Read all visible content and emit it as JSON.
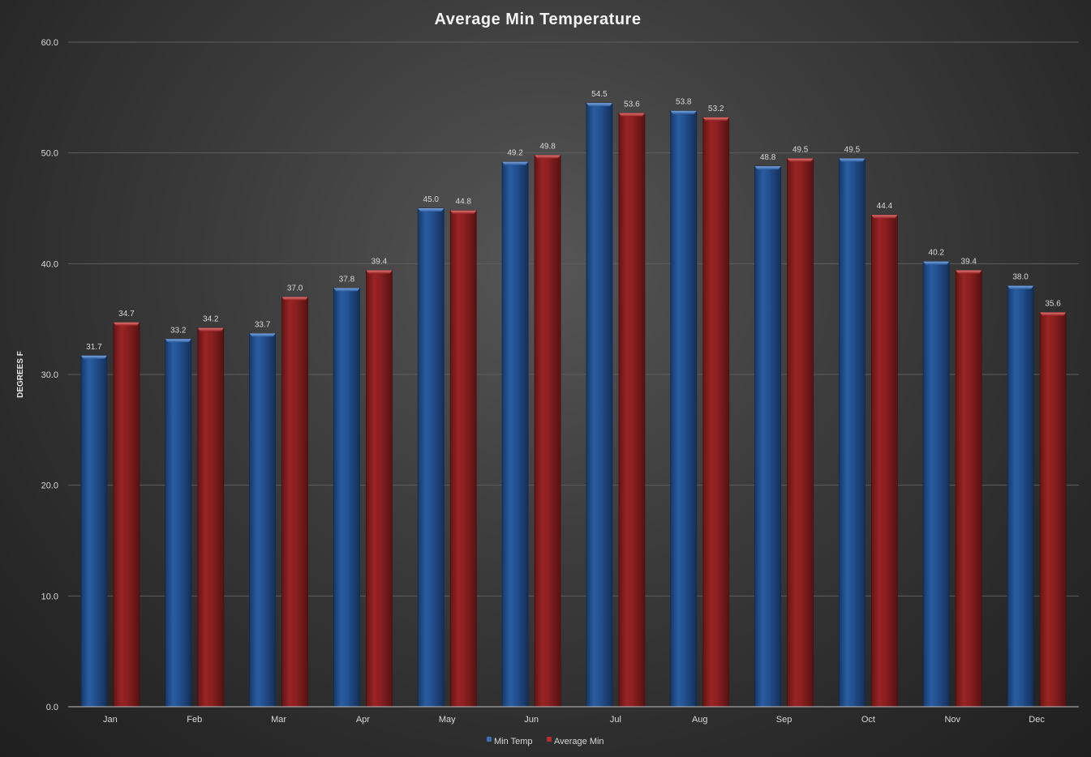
{
  "chart_data": {
    "type": "bar",
    "title": "Average Min Temperature",
    "xlabel": "",
    "ylabel": "DEGREES F",
    "categories": [
      "Jan",
      "Feb",
      "Mar",
      "Apr",
      "May",
      "Jun",
      "Jul",
      "Aug",
      "Sep",
      "Oct",
      "Nov",
      "Dec"
    ],
    "series": [
      {
        "name": "Min Temp",
        "color": "#1f4e8c",
        "values": [
          31.7,
          33.2,
          33.7,
          37.8,
          45.0,
          49.2,
          54.5,
          53.8,
          48.8,
          49.5,
          40.2,
          38.0
        ],
        "labels": [
          "31.7",
          "33.2",
          "33.7",
          "37.8",
          "45.0",
          "49.2",
          "54.5",
          "53.8",
          "48.8",
          "49.5",
          "40.2",
          "38.0"
        ]
      },
      {
        "name": "Average Min",
        "color": "#8b1e1e",
        "values": [
          34.7,
          34.2,
          37.0,
          39.4,
          44.8,
          49.8,
          53.6,
          53.2,
          49.5,
          44.4,
          39.4,
          35.6
        ],
        "labels": [
          "34.7",
          "34.2",
          "37.0",
          "39.4",
          "44.8",
          "49.8",
          "53.6",
          "53.2",
          "49.5",
          "44.4",
          "39.4",
          "35.6"
        ]
      }
    ],
    "ylim": [
      0,
      60
    ],
    "yticks": [
      0,
      10,
      20,
      30,
      40,
      50,
      60
    ],
    "ytick_labels": [
      "0.0",
      "10.0",
      "20.0",
      "30.0",
      "40.0",
      "50.0",
      "60.0"
    ],
    "grid": true,
    "legend_position": "bottom"
  }
}
